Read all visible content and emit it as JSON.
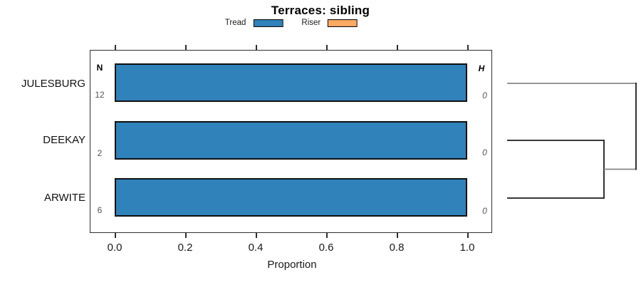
{
  "title": "Terraces: sibling",
  "chart_data": {
    "type": "bar",
    "orientation": "horizontal",
    "title": "Terraces: sibling",
    "xlabel": "Proportion",
    "xlim": [
      0,
      1.05
    ],
    "xticks": [
      0.0,
      0.2,
      0.4,
      0.6,
      0.8,
      1.0
    ],
    "xtick_labels": [
      "0.0",
      "0.2",
      "0.4",
      "0.6",
      "0.8",
      "1.0"
    ],
    "grid": false,
    "legend_position": "top",
    "categories": [
      "JULESBURG",
      "DEEKAY",
      "ARWITE"
    ],
    "series": [
      {
        "name": "Tread",
        "color": "#3082BA",
        "values": [
          1.0,
          1.0,
          1.0
        ]
      },
      {
        "name": "Riser",
        "color": "#FBAA63",
        "values": [
          0.0,
          0.0,
          0.0
        ]
      }
    ],
    "annotations": {
      "n_header": "N",
      "n_values": [
        12,
        2,
        6
      ],
      "h_header": "H",
      "h_values": [
        0,
        0,
        0
      ]
    },
    "dendrogram": {
      "side": "right",
      "leaves": [
        "JULESBURG",
        "DEEKAY",
        "ARWITE"
      ],
      "merges": [
        {
          "members": [
            "DEEKAY",
            "ARWITE"
          ]
        },
        {
          "members": [
            "DEEKAY+ARWITE",
            "JULESBURG"
          ]
        }
      ],
      "line_colors": {
        "upper": "#878787",
        "lower": "#1C1C1C"
      }
    }
  }
}
